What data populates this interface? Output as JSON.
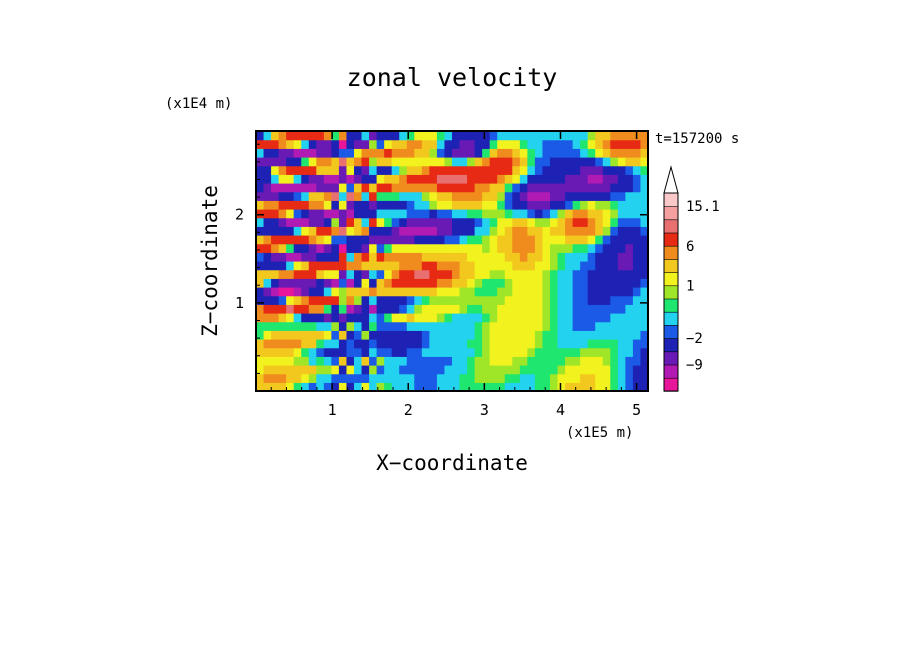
{
  "chart_data": {
    "type": "heatmap",
    "title": "zonal velocity",
    "xlabel": "X−coordinate",
    "ylabel": "Z−coordinate",
    "x_unit": "(x1E5 m)",
    "y_unit": "(x1E4 m)",
    "time_label": "t=157200 s",
    "xlim": [
      0,
      5.15
    ],
    "ylim": [
      0,
      2.95
    ],
    "x_ticks": [
      1,
      2,
      3,
      4,
      5
    ],
    "y_ticks": [
      1,
      2
    ],
    "x_tick_labels": [
      "1",
      "2",
      "3",
      "4",
      "5"
    ],
    "y_tick_labels": [
      "1",
      "2"
    ],
    "grid": false,
    "colorbar": {
      "levels": [
        -15,
        -12,
        -9,
        -6,
        -2,
        -1,
        0,
        0.5,
        1,
        2,
        4,
        6,
        9,
        12,
        15.1
      ],
      "colors": [
        "#e8149a",
        "#b21ab4",
        "#6a1ab4",
        "#1e22b4",
        "#1a5ae6",
        "#22d2ee",
        "#1ee66e",
        "#a0e628",
        "#f2f21e",
        "#f2c81e",
        "#f08c1e",
        "#e62a14",
        "#e87070",
        "#f4a0a0",
        "#fac8c8"
      ],
      "labels": [
        {
          "value": 15.1,
          "text": "15.1"
        },
        {
          "value": 6,
          "text": "6"
        },
        {
          "value": 1,
          "text": "1"
        },
        {
          "value": -2,
          "text": "−2"
        },
        {
          "value": -9,
          "text": "−9"
        }
      ],
      "extend_max": true
    },
    "field_description_values": {
      "grid_nx": 52,
      "grid_nz": 30,
      "dominant_range": [
        -9,
        12
      ]
    }
  }
}
